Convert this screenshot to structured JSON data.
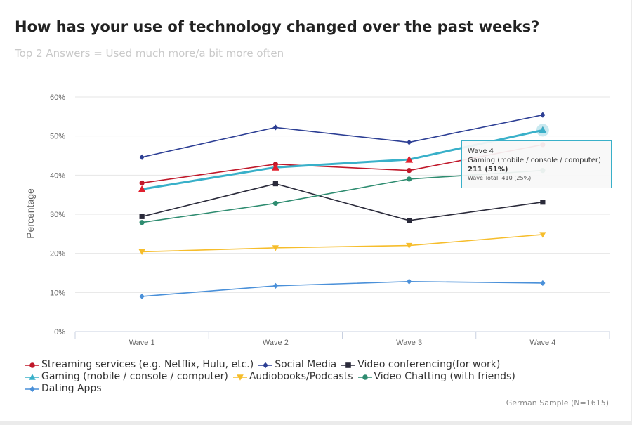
{
  "header": {
    "title": "How has your use of technology changed over the past weeks?",
    "subtitle": "Top 2 Answers = Used much more/a bit more often"
  },
  "footnote": "German Sample (N=1615)",
  "tooltip": {
    "wave": "Wave 4",
    "series": "Gaming (mobile / console / computer)",
    "value": "211 (51%)",
    "total": "Wave Total: 410 (25%)"
  },
  "chart_data": {
    "type": "line",
    "title": "How has your use of technology changed over the past weeks?",
    "subtitle": "Top 2 Answers = Used much more/a bit more often",
    "xlabel": "",
    "ylabel": "Percentage",
    "categories": [
      "Wave 1",
      "Wave 2",
      "Wave 3",
      "Wave 4"
    ],
    "ylim": [
      0,
      60
    ],
    "yticks": [
      0,
      10,
      20,
      30,
      40,
      50,
      60
    ],
    "ytick_labels": [
      "0%",
      "10%",
      "20%",
      "30%",
      "40%",
      "50%",
      "60%"
    ],
    "grid": true,
    "legend_position": "bottom",
    "series": [
      {
        "name": "Streaming services (e.g. Netflix, Hulu, etc.)",
        "color": "#c0182a",
        "marker": "circle",
        "values": [
          38,
          42.8,
          41.2,
          47.8
        ]
      },
      {
        "name": "Social Media",
        "color": "#2c3e94",
        "marker": "diamond",
        "values": [
          44.6,
          52.2,
          48.4,
          55.4
        ]
      },
      {
        "name": "Video conferencing(for work)",
        "color": "#2a2a3a",
        "marker": "square",
        "values": [
          29.4,
          37.8,
          28.4,
          33.1
        ]
      },
      {
        "name": "Gaming (mobile / console / computer)",
        "color": "#39b0c9",
        "marker": "triangle",
        "values": [
          36.4,
          42,
          44,
          51.5
        ]
      },
      {
        "name": "Audiobooks/Podcasts",
        "color": "#f6bd2b",
        "marker": "triangle-down",
        "values": [
          20.4,
          21.4,
          22,
          24.8
        ]
      },
      {
        "name": "Video Chatting (with friends)",
        "color": "#2e8c70",
        "marker": "circle",
        "values": [
          27.9,
          32.8,
          39,
          41.2
        ]
      },
      {
        "name": "Dating Apps",
        "color": "#4a90d9",
        "marker": "diamond",
        "values": [
          9,
          11.7,
          12.8,
          12.4
        ]
      }
    ],
    "highlight": {
      "series_index": 3,
      "point_index": 3
    }
  }
}
